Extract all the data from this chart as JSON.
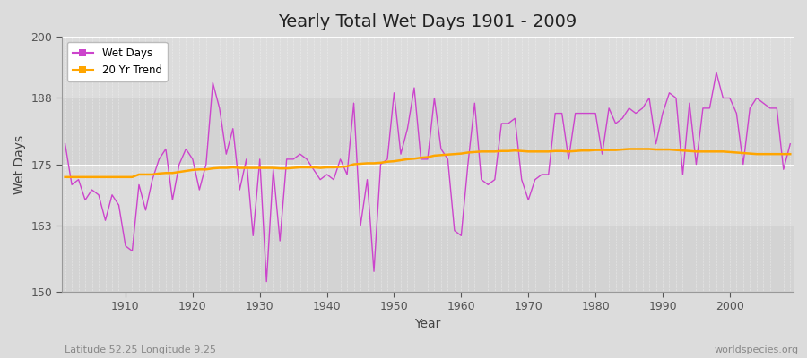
{
  "title": "Yearly Total Wet Days 1901 - 2009",
  "xlabel": "Year",
  "ylabel": "Wet Days",
  "footnote_left": "Latitude 52.25 Longitude 9.25",
  "footnote_right": "worldspecies.org",
  "ylim": [
    150,
    200
  ],
  "yticks": [
    150,
    163,
    175,
    188,
    200
  ],
  "line_color": "#CC44CC",
  "trend_color": "#FFA500",
  "bg_color": "#DCDCDC",
  "bg_band_dark": "#D0D0D0",
  "bg_band_light": "#E0E0E0",
  "years": [
    1901,
    1902,
    1903,
    1904,
    1905,
    1906,
    1907,
    1908,
    1909,
    1910,
    1911,
    1912,
    1913,
    1914,
    1915,
    1916,
    1917,
    1918,
    1919,
    1920,
    1921,
    1922,
    1923,
    1924,
    1925,
    1926,
    1927,
    1928,
    1929,
    1930,
    1931,
    1932,
    1933,
    1934,
    1935,
    1936,
    1937,
    1938,
    1939,
    1940,
    1941,
    1942,
    1943,
    1944,
    1945,
    1946,
    1947,
    1948,
    1949,
    1950,
    1951,
    1952,
    1953,
    1954,
    1955,
    1956,
    1957,
    1958,
    1959,
    1960,
    1961,
    1962,
    1963,
    1964,
    1965,
    1966,
    1967,
    1968,
    1969,
    1970,
    1971,
    1972,
    1973,
    1974,
    1975,
    1976,
    1977,
    1978,
    1979,
    1980,
    1981,
    1982,
    1983,
    1984,
    1985,
    1986,
    1987,
    1988,
    1989,
    1990,
    1991,
    1992,
    1993,
    1994,
    1995,
    1996,
    1997,
    1998,
    1999,
    2000,
    2001,
    2002,
    2003,
    2004,
    2005,
    2006,
    2007,
    2008,
    2009
  ],
  "wet_days": [
    179,
    171,
    172,
    168,
    170,
    169,
    164,
    169,
    167,
    159,
    158,
    171,
    166,
    172,
    176,
    178,
    168,
    175,
    178,
    176,
    170,
    175,
    191,
    186,
    177,
    182,
    170,
    176,
    161,
    176,
    152,
    174,
    160,
    176,
    176,
    177,
    176,
    174,
    172,
    173,
    172,
    176,
    173,
    187,
    163,
    172,
    154,
    175,
    176,
    189,
    177,
    182,
    190,
    176,
    176,
    188,
    178,
    176,
    162,
    161,
    175,
    187,
    172,
    171,
    172,
    183,
    183,
    184,
    172,
    168,
    172,
    173,
    173,
    185,
    185,
    176,
    185,
    185,
    185,
    185,
    177,
    186,
    183,
    184,
    186,
    185,
    186,
    188,
    179,
    185,
    189,
    188,
    173,
    187,
    175,
    186,
    186,
    193,
    188,
    188,
    185,
    175,
    186,
    188,
    187,
    186,
    186,
    174,
    179
  ],
  "trend": [
    172.5,
    172.5,
    172.5,
    172.5,
    172.5,
    172.5,
    172.5,
    172.5,
    172.5,
    172.5,
    172.5,
    173.0,
    173.0,
    173.0,
    173.2,
    173.3,
    173.3,
    173.5,
    173.7,
    173.9,
    174.0,
    174.0,
    174.2,
    174.3,
    174.3,
    174.4,
    174.3,
    174.3,
    174.3,
    174.3,
    174.3,
    174.3,
    174.2,
    174.2,
    174.3,
    174.4,
    174.4,
    174.4,
    174.3,
    174.4,
    174.4,
    174.5,
    174.6,
    175.0,
    175.1,
    175.2,
    175.2,
    175.3,
    175.5,
    175.6,
    175.8,
    176.0,
    176.1,
    176.3,
    176.4,
    176.7,
    176.8,
    176.9,
    177.0,
    177.1,
    177.3,
    177.4,
    177.5,
    177.5,
    177.5,
    177.6,
    177.6,
    177.7,
    177.6,
    177.5,
    177.5,
    177.5,
    177.5,
    177.6,
    177.6,
    177.5,
    177.6,
    177.7,
    177.7,
    177.8,
    177.8,
    177.8,
    177.8,
    177.9,
    178.0,
    178.0,
    178.0,
    178.0,
    177.9,
    177.9,
    177.9,
    177.8,
    177.7,
    177.6,
    177.5,
    177.5,
    177.5,
    177.5,
    177.5,
    177.4,
    177.3,
    177.2,
    177.1,
    177.0,
    177.0,
    177.0,
    177.0,
    177.0,
    177.0
  ]
}
